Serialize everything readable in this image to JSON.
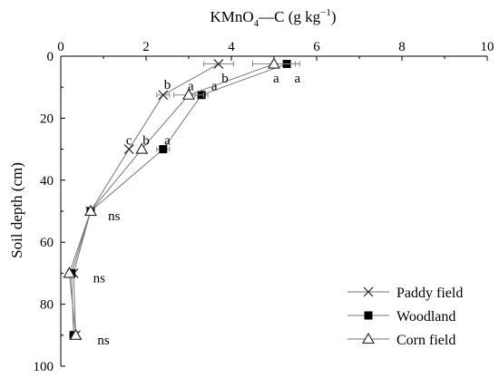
{
  "chart_data": {
    "type": "line",
    "title_main": "KMnO",
    "title_sub": "4",
    "title_rest": "—C (g kg",
    "title_sup": "−1",
    "title_close": ")",
    "xlabel": "",
    "ylabel": "Soil depth (cm)",
    "xlim": [
      0,
      10
    ],
    "ylim": [
      0,
      100
    ],
    "y_inverted": true,
    "x_axis_position": "top",
    "x_ticks": [
      0,
      2,
      4,
      6,
      8,
      10
    ],
    "y_ticks": [
      0,
      20,
      40,
      60,
      80,
      100
    ],
    "grid": false,
    "legend_position": "bottom-right",
    "series": [
      {
        "name": "Paddy field",
        "marker": "x",
        "points": [
          {
            "x": 3.7,
            "y": 2.5,
            "err": 0.35
          },
          {
            "x": 2.4,
            "y": 12.5,
            "err": 0.15
          },
          {
            "x": 1.6,
            "y": 30,
            "err": 0.0
          },
          {
            "x": 0.7,
            "y": 50,
            "err": 0.0
          },
          {
            "x": 0.3,
            "y": 70,
            "err": 0.0
          },
          {
            "x": 0.35,
            "y": 90,
            "err": 0.0
          }
        ]
      },
      {
        "name": "Woodland",
        "marker": "filled-square",
        "points": [
          {
            "x": 5.3,
            "y": 2.5,
            "err": 0.3
          },
          {
            "x": 3.3,
            "y": 12.5,
            "err": 0.15
          },
          {
            "x": 2.4,
            "y": 30,
            "err": 0.15
          },
          {
            "x": 0.7,
            "y": 50,
            "err": 0.0
          },
          {
            "x": 0.25,
            "y": 70,
            "err": 0.0
          },
          {
            "x": 0.3,
            "y": 90,
            "err": 0.0
          }
        ]
      },
      {
        "name": "Corn field",
        "marker": "open-triangle",
        "points": [
          {
            "x": 5.0,
            "y": 2.5,
            "err": 0.5
          },
          {
            "x": 3.0,
            "y": 12.5,
            "err": 0.35
          },
          {
            "x": 1.9,
            "y": 30,
            "err": 0.0
          },
          {
            "x": 0.7,
            "y": 50,
            "err": 0.0
          },
          {
            "x": 0.2,
            "y": 70,
            "err": 0.0
          },
          {
            "x": 0.35,
            "y": 90,
            "err": 0.0
          }
        ]
      }
    ],
    "annotations": [
      {
        "text": "b",
        "x": 3.85,
        "y": 7
      },
      {
        "text": "a",
        "x": 5.05,
        "y": 7
      },
      {
        "text": "a",
        "x": 5.55,
        "y": 7
      },
      {
        "text": "b",
        "x": 2.5,
        "y": 9
      },
      {
        "text": "a",
        "x": 3.05,
        "y": 9.5
      },
      {
        "text": "a",
        "x": 3.6,
        "y": 9.5
      },
      {
        "text": "c",
        "x": 1.6,
        "y": 27
      },
      {
        "text": "b",
        "x": 2.0,
        "y": 27
      },
      {
        "text": "a",
        "x": 2.5,
        "y": 27
      },
      {
        "text": "ns",
        "x": 1.25,
        "y": 51.5
      },
      {
        "text": "ns",
        "x": 0.9,
        "y": 71.5
      },
      {
        "text": "ns",
        "x": 1.0,
        "y": 91.5
      }
    ]
  }
}
